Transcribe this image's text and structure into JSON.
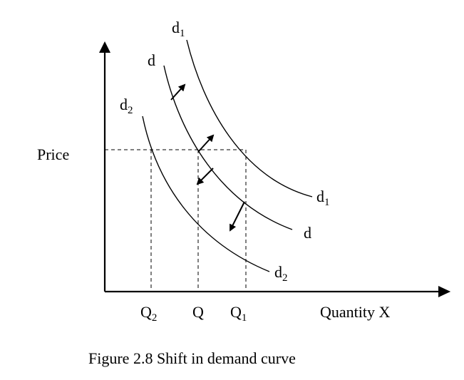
{
  "diagram": {
    "y_axis_label": "Price",
    "x_axis_label": "Quantity X",
    "x_ticks": [
      {
        "base": "Q",
        "sub": "2"
      },
      {
        "base": "Q",
        "sub": ""
      },
      {
        "base": "Q",
        "sub": "1"
      }
    ],
    "curves": [
      {
        "id": "d1",
        "top_label": {
          "base": "d",
          "sub": "1"
        },
        "end_label": {
          "base": "d",
          "sub": "1"
        }
      },
      {
        "id": "d",
        "top_label": {
          "base": "d",
          "sub": ""
        },
        "end_label": {
          "base": "d",
          "sub": ""
        }
      },
      {
        "id": "d2",
        "top_label": {
          "base": "d",
          "sub": "2"
        },
        "end_label": {
          "base": "d",
          "sub": "2"
        }
      }
    ],
    "shift_arrows": [
      "right",
      "right",
      "left",
      "left"
    ]
  },
  "caption": "Figure 2.8 Shift in demand curve"
}
